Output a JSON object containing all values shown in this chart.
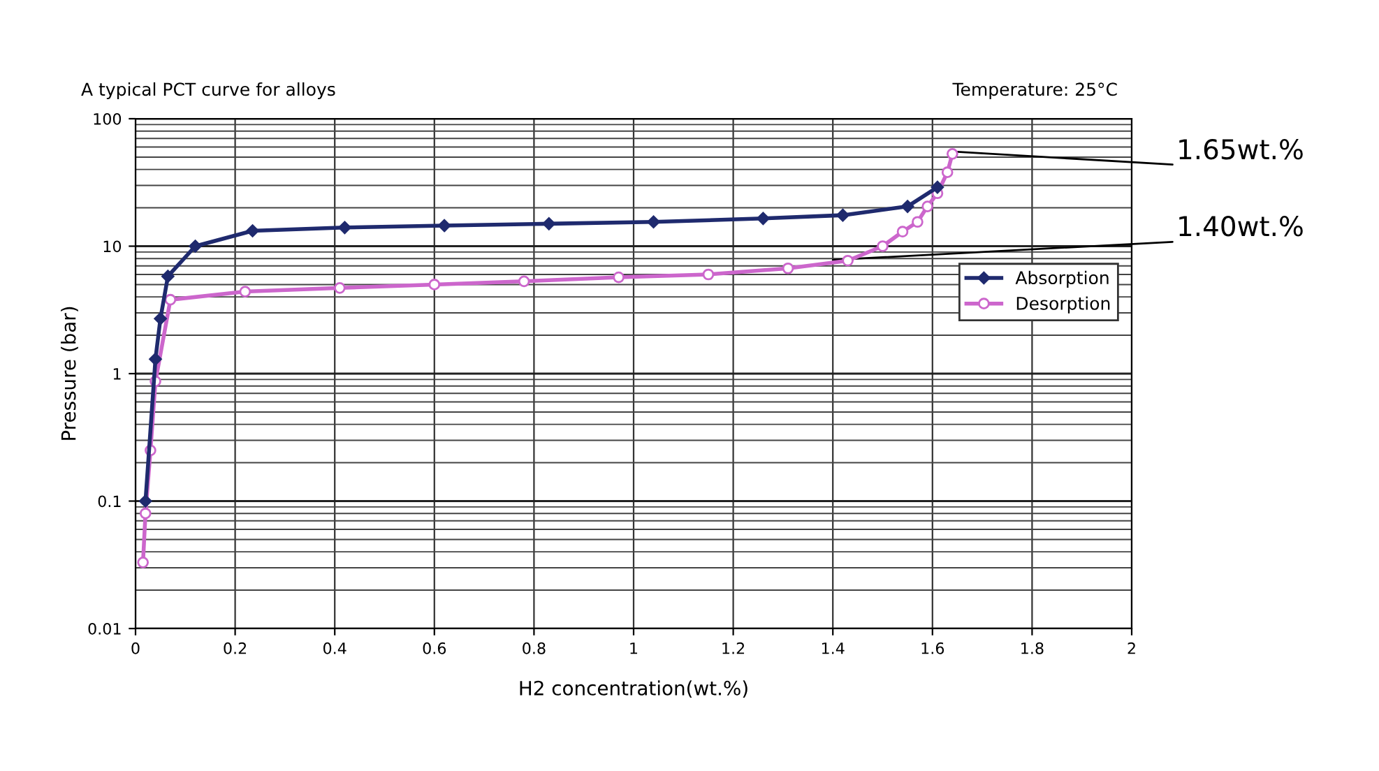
{
  "chart_data": {
    "type": "line",
    "title": "A typical PCT curve for alloys",
    "subtitle": "Temperature: 25°C",
    "xlabel": "H2 concentration(wt.%)",
    "ylabel": "Pressure (bar)",
    "log": "y",
    "xlim": [
      0,
      2
    ],
    "xticks": [
      0,
      0.2,
      0.4,
      0.6,
      0.8,
      1,
      1.2,
      1.4,
      1.6,
      1.8,
      2
    ],
    "ylim": [
      0.01,
      100
    ],
    "yticks": [
      0.01,
      0.1,
      1,
      10,
      100
    ],
    "grid": true,
    "legend": "right",
    "annotations": [
      {
        "text": "1.65wt.%",
        "x": 1.65,
        "y": 55
      },
      {
        "text": "1.40wt.%",
        "x": 1.4,
        "y": 7.8
      }
    ],
    "series": [
      {
        "name": "Absorption",
        "color": "#1f2a6e",
        "marker": "diamond",
        "x": [
          0.02,
          0.04,
          0.05,
          0.065,
          0.12,
          0.235,
          0.42,
          0.62,
          0.83,
          1.04,
          1.26,
          1.42,
          1.55,
          1.61
        ],
        "values": [
          0.1,
          1.3,
          2.7,
          5.8,
          10,
          13.2,
          14,
          14.5,
          15,
          15.5,
          16.5,
          17.5,
          20.5,
          29
        ]
      },
      {
        "name": "Desorption",
        "color": "#cc66cc",
        "marker": "circle",
        "x": [
          0.015,
          0.02,
          0.03,
          0.04,
          0.07,
          0.22,
          0.41,
          0.6,
          0.78,
          0.97,
          1.15,
          1.31,
          1.43,
          1.5,
          1.54,
          1.57,
          1.59,
          1.61,
          1.63,
          1.64
        ],
        "values": [
          0.033,
          0.08,
          0.25,
          0.87,
          3.8,
          4.4,
          4.7,
          5.0,
          5.3,
          5.7,
          6.0,
          6.7,
          7.7,
          10,
          13,
          15.5,
          20.5,
          26,
          38,
          53
        ]
      }
    ]
  }
}
